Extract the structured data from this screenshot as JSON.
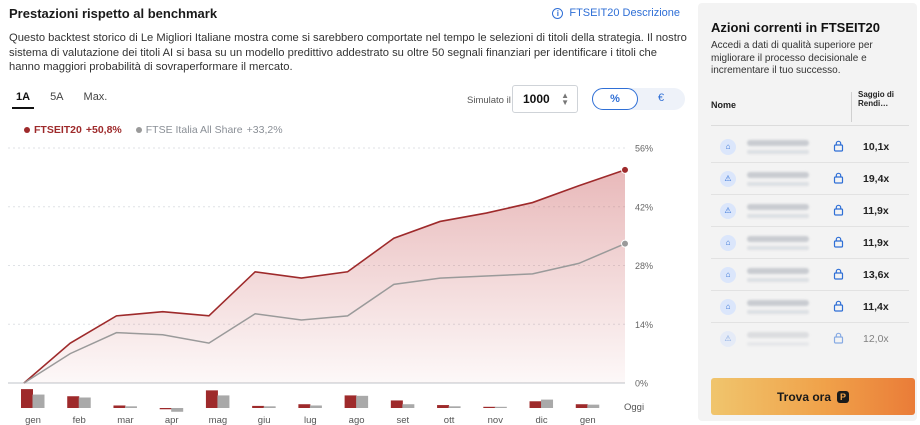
{
  "header": {
    "title": "Prestazioni rispetto al benchmark",
    "link_label": "FTSEIT20 Descrizione",
    "description": "Questo backtest storico di Le Migliori Italiane mostra come si sarebbero comportate nel tempo le selezioni di titoli della strategia. Il nostro sistema di valutazione dei titoli AI si basa su un modello predittivo addestrato su oltre 50 segnali finanziari per identificare i titoli che hanno maggiori probabilità di sovraperformare il mercato."
  },
  "controls": {
    "periods": [
      {
        "label": "1A",
        "active": true
      },
      {
        "label": "5A",
        "active": false
      },
      {
        "label": "Max.",
        "active": false
      }
    ],
    "simulated_label": "Simulato il",
    "simulated_value": "1000",
    "toggle": [
      {
        "label": "%",
        "active": true
      },
      {
        "label": "€",
        "active": false
      }
    ]
  },
  "legend": {
    "series_a": "FTSEIT20",
    "series_a_value": "+50,8%",
    "series_b": "FTSE Italia All Share",
    "series_b_value": "+33,2%"
  },
  "chart_data": {
    "type": "area",
    "categories": [
      "gen",
      "feb",
      "mar",
      "apr",
      "mag",
      "giu",
      "lug",
      "ago",
      "set",
      "ott",
      "nov",
      "dic",
      "gen",
      "Oggi"
    ],
    "y_ticks": [
      "56%",
      "42%",
      "28%",
      "14%",
      "0%"
    ],
    "ylim": [
      0,
      56
    ],
    "series": [
      {
        "name": "FTSEIT20",
        "color": "#9e2a2b",
        "values": [
          0,
          9.5,
          16,
          17,
          16,
          26.5,
          25,
          26.5,
          34.5,
          38.5,
          40.5,
          43,
          47,
          50.8
        ]
      },
      {
        "name": "FTSE Italia All Share",
        "color": "#9a9a9a",
        "values": [
          0,
          7,
          12,
          11.5,
          9.5,
          16.5,
          15,
          16,
          23.5,
          25,
          25.5,
          26,
          28.5,
          33.2
        ]
      }
    ],
    "monthly_bars": {
      "categories": [
        "gen",
        "feb",
        "mar",
        "apr",
        "mag",
        "giu",
        "lug",
        "ago",
        "set",
        "ott",
        "nov",
        "dic",
        "gen"
      ],
      "series_a": [
        4.5,
        2.8,
        0.6,
        -0.3,
        4.2,
        0.5,
        0.9,
        3.0,
        1.8,
        0.7,
        0.2,
        1.6,
        0.9
      ],
      "series_b": [
        3.2,
        2.5,
        0.4,
        -0.9,
        3.0,
        0.4,
        0.6,
        2.9,
        0.9,
        0.4,
        0.1,
        2.0,
        0.8
      ]
    }
  },
  "sidebar": {
    "title": "Azioni correnti in FTSEIT20",
    "subtitle": "Accedi a dati di qualità superiore per migliorare il processo decisionale e incrementare il tuo successo.",
    "col_name": "Nome",
    "col_rate": "Saggio di Rendi…",
    "rows": [
      {
        "icon": "bank-icon",
        "rate": "10,1x"
      },
      {
        "icon": "warning-icon",
        "rate": "19,4x"
      },
      {
        "icon": "warning-icon",
        "rate": "11,9x"
      },
      {
        "icon": "bank-icon",
        "rate": "11,9x"
      },
      {
        "icon": "bank-icon",
        "rate": "13,6x"
      },
      {
        "icon": "bank-icon",
        "rate": "11,4x"
      },
      {
        "icon": "warning-icon",
        "rate": "12,0x"
      }
    ],
    "cta_label": "Trova ora",
    "cta_icon": "P"
  }
}
